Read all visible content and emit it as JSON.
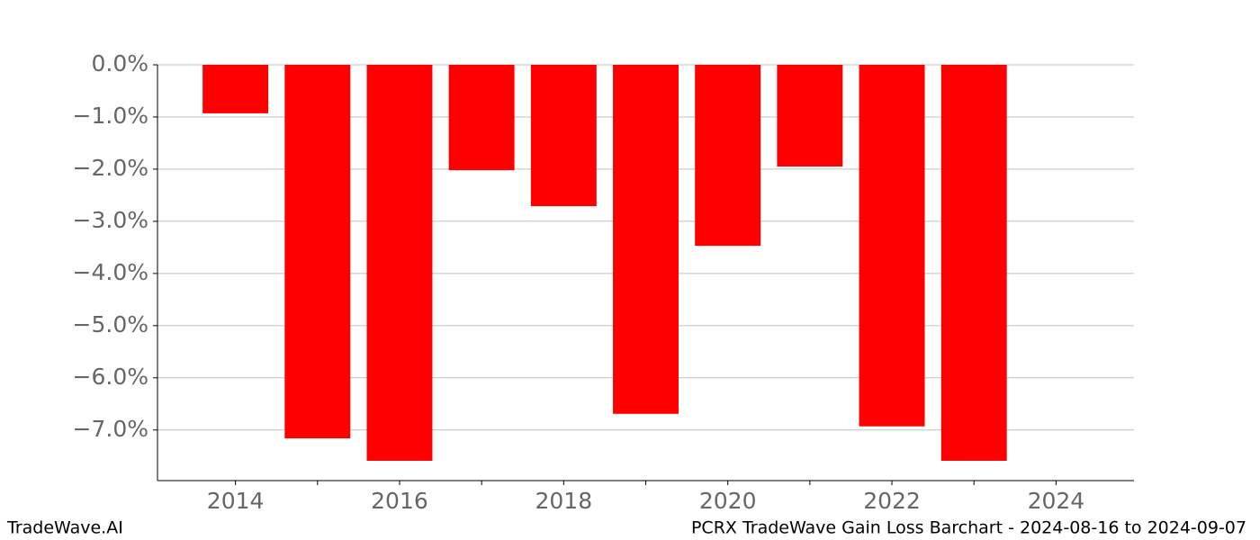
{
  "chart_data": {
    "type": "bar",
    "title": "PCRX TradeWave Gain Loss Barchart - 2024-08-16 to 2024-09-07",
    "watermark": "TradeWave.AI",
    "x": [
      2014,
      2015,
      2016,
      2017,
      2018,
      2019,
      2020,
      2021,
      2022,
      2023
    ],
    "values": [
      -0.93,
      -7.16,
      -7.59,
      -2.02,
      -2.71,
      -6.69,
      -3.47,
      -1.95,
      -6.93,
      -7.59
    ],
    "color": "#ff0000",
    "xlim": [
      2013.05,
      2024.95
    ],
    "xticks": [
      2014,
      2016,
      2018,
      2020,
      2022,
      2024
    ],
    "xminorticks": [
      2015,
      2017,
      2019,
      2021,
      2023
    ],
    "ylim": [
      -7.97,
      0
    ],
    "yticks": [
      {
        "value": 0,
        "label": "0.0%"
      },
      {
        "value": -1,
        "label": "−1.0%"
      },
      {
        "value": -2,
        "label": "−2.0%"
      },
      {
        "value": -3,
        "label": "−3.0%"
      },
      {
        "value": -4,
        "label": "−4.0%"
      },
      {
        "value": -5,
        "label": "−5.0%"
      },
      {
        "value": -6,
        "label": "−6.0%"
      },
      {
        "value": -7,
        "label": "−7.0%"
      }
    ],
    "grid": true
  }
}
